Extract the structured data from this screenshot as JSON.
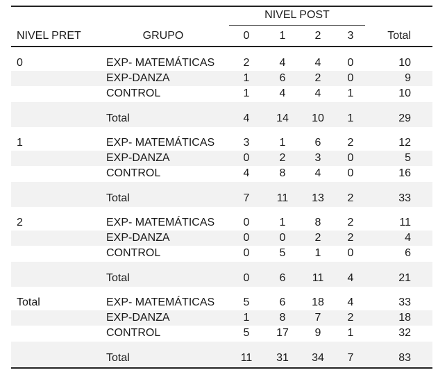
{
  "header": {
    "nivel_post": "NIVEL POST",
    "nivel_pret": "NIVEL PRET",
    "grupo": "GRUPO",
    "cols": [
      "0",
      "1",
      "2",
      "3"
    ],
    "total": "Total"
  },
  "blocks": [
    {
      "pret": "0",
      "rows": [
        {
          "grupo": "EXP- MATEMÁTICAS",
          "v": [
            "2",
            "4",
            "4",
            "0"
          ],
          "total": "10"
        },
        {
          "grupo": "EXP-DANZA",
          "v": [
            "1",
            "6",
            "2",
            "0"
          ],
          "total": "9"
        },
        {
          "grupo": "CONTROL",
          "v": [
            "1",
            "4",
            "4",
            "1"
          ],
          "total": "10"
        }
      ],
      "sum": {
        "grupo": "Total",
        "v": [
          "4",
          "14",
          "10",
          "1"
        ],
        "total": "29"
      }
    },
    {
      "pret": "1",
      "rows": [
        {
          "grupo": "EXP- MATEMÁTICAS",
          "v": [
            "3",
            "1",
            "6",
            "2"
          ],
          "total": "12"
        },
        {
          "grupo": "EXP-DANZA",
          "v": [
            "0",
            "2",
            "3",
            "0"
          ],
          "total": "5"
        },
        {
          "grupo": "CONTROL",
          "v": [
            "4",
            "8",
            "4",
            "0"
          ],
          "total": "16"
        }
      ],
      "sum": {
        "grupo": "Total",
        "v": [
          "7",
          "11",
          "13",
          "2"
        ],
        "total": "33"
      }
    },
    {
      "pret": "2",
      "rows": [
        {
          "grupo": "EXP- MATEMÁTICAS",
          "v": [
            "0",
            "1",
            "8",
            "2"
          ],
          "total": "11"
        },
        {
          "grupo": "EXP-DANZA",
          "v": [
            "0",
            "0",
            "2",
            "2"
          ],
          "total": "4"
        },
        {
          "grupo": "CONTROL",
          "v": [
            "0",
            "5",
            "1",
            "0"
          ],
          "total": "6"
        }
      ],
      "sum": {
        "grupo": "Total",
        "v": [
          "0",
          "6",
          "11",
          "4"
        ],
        "total": "21"
      }
    },
    {
      "pret": "Total",
      "rows": [
        {
          "grupo": "EXP- MATEMÁTICAS",
          "v": [
            "5",
            "6",
            "18",
            "4"
          ],
          "total": "33"
        },
        {
          "grupo": "EXP-DANZA",
          "v": [
            "1",
            "8",
            "7",
            "2"
          ],
          "total": "18"
        },
        {
          "grupo": "CONTROL",
          "v": [
            "5",
            "17",
            "9",
            "1"
          ],
          "total": "32"
        }
      ],
      "sum": {
        "grupo": "Total",
        "v": [
          "11",
          "31",
          "34",
          "7"
        ],
        "total": "83"
      }
    }
  ]
}
